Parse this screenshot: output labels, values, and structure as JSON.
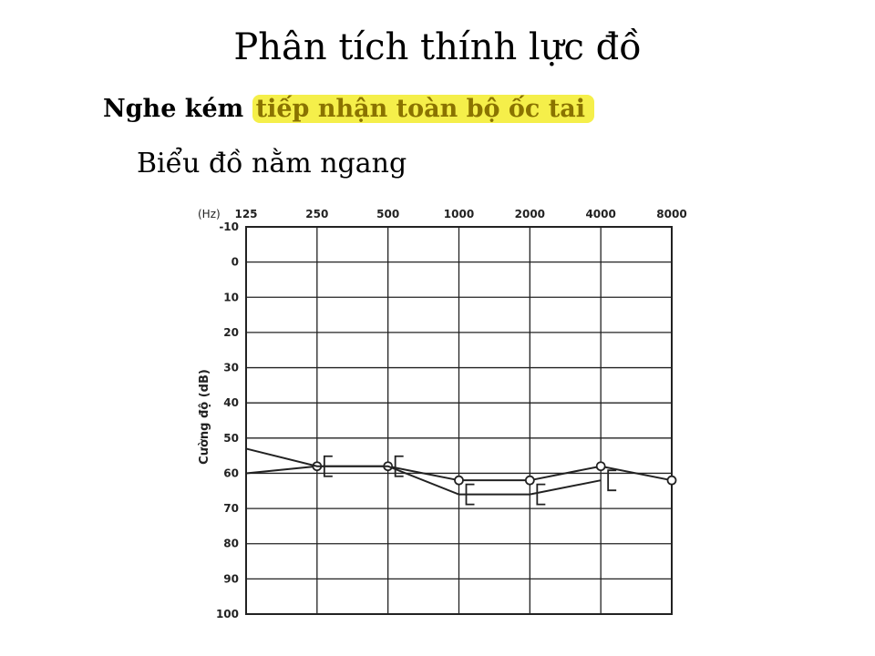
{
  "slide": {
    "title": "Phân tích thính lực đồ",
    "subtitle_prefix": "Nghe kém",
    "subtitle_highlight": "tiếp nhận toàn bộ ốc tai",
    "description": "Biểu đồ nằm ngang"
  },
  "colors": {
    "highlight": "#f5ef4a",
    "grid": "#222222",
    "line": "#222222"
  },
  "chart_data": {
    "type": "line",
    "x_unit_label": "(Hz)",
    "ylabel": "Cường độ (dB)",
    "x": [
      125,
      250,
      500,
      1000,
      2000,
      4000,
      8000
    ],
    "x_tick_labels": [
      "125",
      "250",
      "500",
      "1000",
      "2000",
      "4000",
      "8000"
    ],
    "y_ticks": [
      -10,
      0,
      10,
      20,
      30,
      40,
      50,
      60,
      70,
      80,
      90,
      100
    ],
    "ylim": [
      -10,
      100
    ],
    "y_inverted": true,
    "grid": true,
    "series": [
      {
        "marker": "circle",
        "x": [
          125,
          250,
          500,
          1000,
          2000,
          4000,
          8000
        ],
        "values": [
          60,
          58,
          58,
          62,
          62,
          58,
          62
        ]
      },
      {
        "marker": "bracket",
        "x": [
          125,
          250,
          500,
          1000,
          2000,
          4000
        ],
        "values": [
          53,
          58,
          58,
          66,
          66,
          62
        ]
      }
    ]
  }
}
